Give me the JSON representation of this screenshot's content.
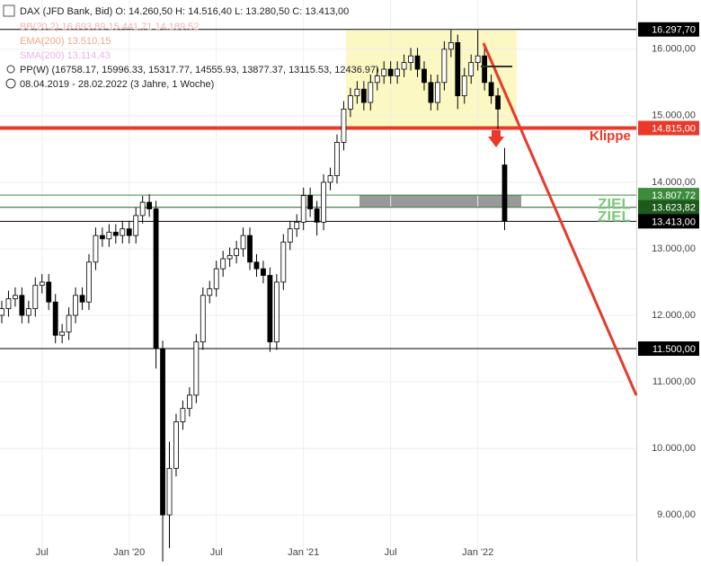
{
  "header": {
    "title": "DAX (JFD Bank, Bid)  O: 14.260,50  H: 14.516,40  L: 13.280,50  C: 13.413,00",
    "indicators": [
      "BB(20,2)  16.693,89  15.441,71  14.189,52",
      "EMA(200)  13.510,15",
      "SMA(200)  13.114,43",
      "PP(W)  (16758.17, 15996.33, 15317.77, 14555.93, 13877.37, 13115.53, 12436.97)"
    ],
    "range": "08.04.2019 - 28.02.2022  (3 Jahre, 1 Woche)"
  },
  "chart_data": {
    "type": "candlestick",
    "grid": true,
    "up_color": "#ffffff",
    "down_color": "#000000",
    "categories": [
      null,
      null,
      null,
      null,
      null,
      null,
      "Jul",
      null,
      null,
      null,
      null,
      null,
      null,
      null,
      null,
      null,
      null,
      null,
      null,
      "Jan '20",
      null,
      null,
      null,
      null,
      null,
      null,
      null,
      null,
      null,
      null,
      null,
      null,
      "Jul",
      null,
      null,
      null,
      null,
      null,
      null,
      null,
      null,
      null,
      null,
      null,
      null,
      "Jan '21",
      null,
      null,
      null,
      null,
      null,
      null,
      null,
      null,
      null,
      null,
      null,
      null,
      "Jul",
      null,
      null,
      null,
      null,
      null,
      null,
      null,
      null,
      null,
      null,
      null,
      null,
      "Jan '22",
      null,
      null,
      null,
      null
    ],
    "open": [
      12000,
      12100,
      12250,
      12300,
      12000,
      12100,
      12450,
      12500,
      12200,
      11700,
      11750,
      12000,
      12300,
      12200,
      12800,
      13200,
      13150,
      13250,
      13200,
      13300,
      13200,
      13500,
      13700,
      13600,
      11500,
      9000,
      9700,
      10400,
      10600,
      10800,
      11600,
      12300,
      12400,
      12700,
      12850,
      12900,
      13000,
      13200,
      12800,
      12700,
      12600,
      11600,
      12500,
      13100,
      13300,
      13400,
      13800,
      13600,
      13400,
      14000,
      14100,
      14600,
      15100,
      15300,
      15400,
      15200,
      15500,
      15600,
      15700,
      15600,
      15700,
      15800,
      15900,
      15700,
      15500,
      15200,
      15500,
      16000,
      16100,
      15300,
      15600,
      15800,
      15900,
      15500,
      15300,
      14260.5
    ],
    "high": [
      12220,
      12370,
      12420,
      12420,
      12220,
      12570,
      12620,
      12620,
      12320,
      11870,
      12120,
      12420,
      12420,
      12920,
      13320,
      13320,
      13370,
      13370,
      13420,
      13420,
      13620,
      13795,
      13820,
      13720,
      11620,
      10100,
      10520,
      10720,
      10920,
      11720,
      12420,
      12520,
      12820,
      12970,
      13020,
      13120,
      13320,
      13320,
      12920,
      12820,
      12720,
      12620,
      13220,
      13420,
      13520,
      13920,
      13920,
      13720,
      14120,
      14220,
      14720,
      15220,
      15420,
      15520,
      15520,
      15620,
      15720,
      15820,
      15820,
      15820,
      15920,
      16020,
      16020,
      15820,
      15620,
      15620,
      16120,
      16290,
      16220,
      15720,
      15920,
      16285,
      16020,
      15620,
      15420,
      14516.4
    ],
    "low": [
      11880,
      11980,
      12130,
      11880,
      11880,
      11980,
      12330,
      12080,
      11580,
      11580,
      11630,
      11880,
      12080,
      12080,
      12680,
      13030,
      13030,
      13080,
      13080,
      13080,
      13080,
      13380,
      13480,
      11200,
      8300,
      8500,
      9580,
      10280,
      10480,
      10680,
      11480,
      12180,
      12280,
      12580,
      12730,
      12780,
      12880,
      12680,
      12580,
      12480,
      11450,
      11480,
      12380,
      12980,
      13180,
      13280,
      13480,
      13200,
      13280,
      13880,
      13980,
      14480,
      14980,
      15180,
      15080,
      15080,
      15380,
      15480,
      15480,
      15480,
      15580,
      15680,
      15580,
      15380,
      15080,
      15080,
      15380,
      15880,
      15100,
      15180,
      15480,
      15680,
      15380,
      15180,
      14800,
      13280.5
    ],
    "close": [
      12100,
      12250,
      12300,
      12000,
      12100,
      12450,
      12500,
      12200,
      11700,
      11750,
      12000,
      12300,
      12200,
      12800,
      13200,
      13150,
      13250,
      13200,
      13300,
      13200,
      13500,
      13700,
      13600,
      11500,
      9000,
      9700,
      10400,
      10600,
      10800,
      11600,
      12300,
      12400,
      12700,
      12850,
      12900,
      13000,
      13200,
      12800,
      12700,
      12600,
      11600,
      12500,
      13100,
      13300,
      13400,
      13800,
      13600,
      13400,
      14000,
      14100,
      14600,
      15100,
      15300,
      15400,
      15200,
      15500,
      15600,
      15700,
      15600,
      15700,
      15800,
      15900,
      15700,
      15500,
      15200,
      15500,
      16000,
      16100,
      15300,
      15600,
      15800,
      15900,
      15500,
      15300,
      15100,
      13413
    ],
    "ylim": [
      8340,
      16740
    ],
    "yticks": [
      {
        "value": 9000,
        "label": "9.000,00"
      },
      {
        "value": 10000,
        "label": "10.000,00"
      },
      {
        "value": 11000,
        "label": "11.000,00"
      },
      {
        "value": 12000,
        "label": "12.000,00"
      },
      {
        "value": 13000,
        "label": "13.000,00"
      },
      {
        "value": 14000,
        "label": "14.000,00"
      },
      {
        "value": 15000,
        "label": "15.000,00"
      },
      {
        "value": 16000,
        "label": "16.000,00"
      }
    ],
    "levels": [
      {
        "value": 16297.7,
        "label": "16.297,70",
        "color": "#000000"
      },
      {
        "value": 14815,
        "label": "14.815,00",
        "color": "#e8392a"
      },
      {
        "value": 13807.72,
        "label": "13.807.72",
        "color": "#3c8c3c"
      },
      {
        "value": 13623.82,
        "label": "13.623,82",
        "color": "#1e5a1e"
      },
      {
        "value": 13413,
        "label": "13.413,00",
        "color": "#000000"
      },
      {
        "value": 11500,
        "label": "11.500,00",
        "color": "#000000"
      }
    ],
    "annotations": [
      {
        "text": "Klippe",
        "color": "#e8392a"
      },
      {
        "text": "ZIEL",
        "color": "#7cc87c"
      },
      {
        "text": "ZIEL",
        "color": "#7cc87c"
      }
    ]
  }
}
